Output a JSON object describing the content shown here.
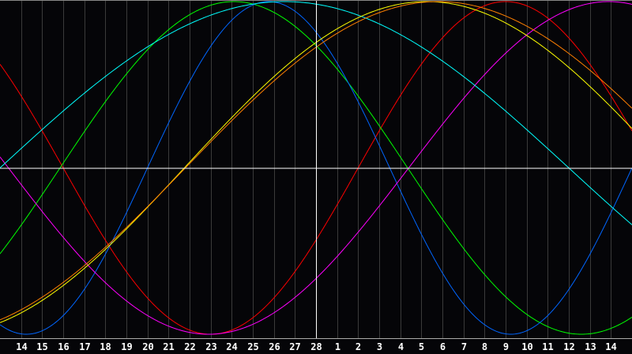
{
  "chart_data": {
    "type": "line",
    "grid": true,
    "x_tick_labels": [
      "14",
      "15",
      "16",
      "17",
      "18",
      "19",
      "20",
      "21",
      "22",
      "23",
      "24",
      "25",
      "26",
      "27",
      "28",
      "1",
      "2",
      "3",
      "4",
      "5",
      "6",
      "7",
      "8",
      "9",
      "10",
      "11",
      "12",
      "13",
      "14"
    ],
    "center_label": "28",
    "xlim_days": [
      -15,
      15
    ],
    "ylim": [
      -1,
      1
    ],
    "series": [
      {
        "color": "#ff0000",
        "period_days": 28,
        "peak_day": 9.0
      },
      {
        "color": "#00ff00",
        "period_days": 33,
        "peak_day": -3.9
      },
      {
        "color": "#0066ff",
        "period_days": 23,
        "peak_day": -2.25
      },
      {
        "color": "#ff00ff",
        "period_days": 38,
        "peak_day": 13.9
      },
      {
        "color": "#00ffff",
        "period_days": 54,
        "peak_day": -1.5
      },
      {
        "color": "#ffff00",
        "period_days": 46,
        "peak_day": 5.25
      },
      {
        "color": "#ff8000",
        "period_days": 48,
        "peak_day": 5.8
      }
    ],
    "colors": {
      "background": "#050508",
      "grid": "#3a3a3a",
      "axis": "#ffffff",
      "baseline": "#aaaaaa"
    }
  }
}
